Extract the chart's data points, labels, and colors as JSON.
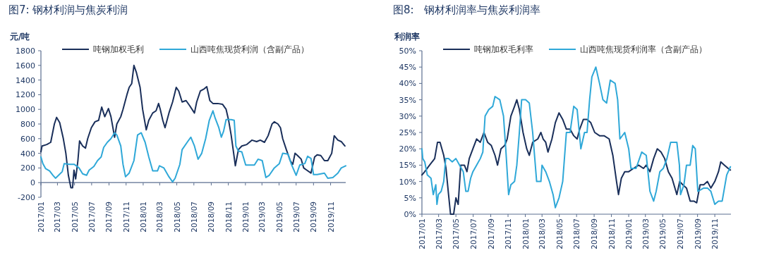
{
  "chart_data": [
    {
      "type": "line",
      "title": "图7: 钢材利润与焦炭利润",
      "ylabel": "元/吨",
      "legend": "top",
      "grid": false,
      "xlim": [
        "2017-01-01",
        "2019-12-25"
      ],
      "xticks": [
        {
          "value": "2017-01-01",
          "label": "2017/01"
        },
        {
          "value": "2017-03-01",
          "label": "2017/03"
        },
        {
          "value": "2017-05-01",
          "label": "2017/05"
        },
        {
          "value": "2017-07-01",
          "label": "2017/07"
        },
        {
          "value": "2017-09-01",
          "label": "2017/09"
        },
        {
          "value": "2017-11-01",
          "label": "2017/11"
        },
        {
          "value": "2018-01-01",
          "label": "2018/01"
        },
        {
          "value": "2018-03-01",
          "label": "2018/03"
        },
        {
          "value": "2018-05-01",
          "label": "2018/05"
        },
        {
          "value": "2018-07-01",
          "label": "2018/07"
        },
        {
          "value": "2018-09-01",
          "label": "2018/09"
        },
        {
          "value": "2018-11-01",
          "label": "2018/11"
        },
        {
          "value": "2019-01-01",
          "label": "2019/01"
        },
        {
          "value": "2019-03-01",
          "label": "2019/03"
        },
        {
          "value": "2019-05-01",
          "label": "2019/05"
        },
        {
          "value": "2019-07-01",
          "label": "2019/07"
        },
        {
          "value": "2019-09-01",
          "label": "2019/09"
        },
        {
          "value": "2019-11-01",
          "label": "2019/11"
        }
      ],
      "ylim": [
        -200,
        1800
      ],
      "yticks": [
        -200,
        0,
        200,
        400,
        600,
        800,
        1000,
        1200,
        1400,
        1600,
        1800
      ],
      "series": [
        {
          "name": "吨钢加权毛利",
          "color": "#1a2f5a",
          "x": [
            "2017-01-01",
            "2017-01-05",
            "2017-01-22",
            "2017-02-05",
            "2017-02-18",
            "2017-02-26",
            "2017-03-09",
            "2017-03-22",
            "2017-03-31",
            "2017-04-09",
            "2017-04-18",
            "2017-04-24",
            "2017-04-29",
            "2017-05-05",
            "2017-05-13",
            "2017-05-19",
            "2017-05-30",
            "2017-06-09",
            "2017-06-17",
            "2017-06-30",
            "2017-07-13",
            "2017-07-26",
            "2017-08-06",
            "2017-08-17",
            "2017-08-30",
            "2017-09-08",
            "2017-09-21",
            "2017-09-29",
            "2017-10-13",
            "2017-10-21",
            "2017-11-04",
            "2017-11-12",
            "2017-11-21",
            "2017-11-29",
            "2017-12-08",
            "2017-12-21",
            "2017-12-30",
            "2018-01-12",
            "2018-01-21",
            "2018-02-04",
            "2018-02-16",
            "2018-02-25",
            "2018-03-03",
            "2018-03-12",
            "2018-03-20",
            "2018-04-03",
            "2018-04-16",
            "2018-04-29",
            "2018-05-08",
            "2018-05-20",
            "2018-06-03",
            "2018-06-16",
            "2018-07-03",
            "2018-07-11",
            "2018-07-24",
            "2018-08-07",
            "2018-08-16",
            "2018-08-27",
            "2018-09-07",
            "2018-09-24",
            "2018-10-11",
            "2018-10-24",
            "2018-11-02",
            "2018-11-11",
            "2018-11-20",
            "2018-11-26",
            "2018-12-07",
            "2018-12-19",
            "2019-01-06",
            "2019-01-24",
            "2019-02-10",
            "2019-02-23",
            "2019-03-10",
            "2019-03-23",
            "2019-04-06",
            "2019-04-14",
            "2019-04-27",
            "2019-05-06",
            "2019-05-14",
            "2019-05-27",
            "2019-06-10",
            "2019-06-19",
            "2019-06-27",
            "2019-07-06",
            "2019-07-19",
            "2019-07-28",
            "2019-08-08",
            "2019-08-23",
            "2019-09-05",
            "2019-09-14",
            "2019-09-27",
            "2019-10-10",
            "2019-10-22",
            "2019-11-05",
            "2019-11-14",
            "2019-11-27",
            "2019-12-09",
            "2019-12-22"
          ],
          "values": [
            420,
            500,
            520,
            550,
            800,
            890,
            820,
            600,
            400,
            100,
            -70,
            -70,
            170,
            50,
            300,
            570,
            500,
            470,
            600,
            750,
            830,
            850,
            1030,
            900,
            1010,
            900,
            620,
            800,
            900,
            1000,
            1200,
            1300,
            1350,
            1600,
            1500,
            1300,
            1000,
            720,
            850,
            950,
            980,
            1080,
            1000,
            850,
            750,
            950,
            1100,
            1300,
            1250,
            1100,
            1120,
            1050,
            950,
            1100,
            1250,
            1280,
            1310,
            1120,
            1080,
            1080,
            1070,
            1000,
            850,
            650,
            400,
            230,
            450,
            500,
            520,
            580,
            560,
            580,
            550,
            640,
            800,
            830,
            800,
            750,
            600,
            450,
            300,
            250,
            400,
            370,
            320,
            200,
            170,
            130,
            350,
            380,
            370,
            300,
            300,
            400,
            640,
            580,
            560,
            500
          ]
        },
        {
          "name": "山西吨焦现货利润（含副产品）",
          "color": "#2fa8d8",
          "x": [
            "2017-01-01",
            "2017-01-08",
            "2017-01-18",
            "2017-02-01",
            "2017-02-13",
            "2017-02-22",
            "2017-03-05",
            "2017-03-18",
            "2017-03-25",
            "2017-04-13",
            "2017-04-30",
            "2017-05-17",
            "2017-05-30",
            "2017-06-13",
            "2017-06-22",
            "2017-07-09",
            "2017-07-22",
            "2017-08-04",
            "2017-08-13",
            "2017-08-26",
            "2017-09-08",
            "2017-09-21",
            "2017-09-29",
            "2017-10-13",
            "2017-10-21",
            "2017-10-30",
            "2017-11-12",
            "2017-11-29",
            "2017-12-12",
            "2017-12-25",
            "2018-01-08",
            "2018-01-21",
            "2018-02-04",
            "2018-02-21",
            "2018-02-28",
            "2018-03-16",
            "2018-04-03",
            "2018-04-16",
            "2018-04-25",
            "2018-05-12",
            "2018-05-20",
            "2018-06-07",
            "2018-06-20",
            "2018-07-03",
            "2018-07-16",
            "2018-07-29",
            "2018-08-12",
            "2018-08-25",
            "2018-09-07",
            "2018-09-15",
            "2018-09-28",
            "2018-10-07",
            "2018-10-15",
            "2018-10-24",
            "2018-11-11",
            "2018-11-22",
            "2018-11-28",
            "2018-12-07",
            "2018-12-19",
            "2019-01-02",
            "2019-02-02",
            "2019-02-15",
            "2019-03-02",
            "2019-03-15",
            "2019-03-27",
            "2019-04-14",
            "2019-05-02",
            "2019-05-14",
            "2019-06-02",
            "2019-06-14",
            "2019-07-01",
            "2019-07-14",
            "2019-08-01",
            "2019-08-11",
            "2019-08-23",
            "2019-09-01",
            "2019-09-14",
            "2019-10-10",
            "2019-10-22",
            "2019-11-09",
            "2019-11-27",
            "2019-12-09",
            "2019-12-25"
          ],
          "values": [
            350,
            260,
            190,
            160,
            100,
            60,
            100,
            150,
            260,
            250,
            250,
            200,
            120,
            100,
            170,
            220,
            300,
            350,
            480,
            550,
            600,
            680,
            650,
            500,
            250,
            80,
            130,
            300,
            650,
            680,
            550,
            350,
            160,
            160,
            230,
            200,
            80,
            10,
            60,
            250,
            450,
            550,
            620,
            500,
            320,
            400,
            600,
            850,
            980,
            880,
            750,
            620,
            700,
            860,
            860,
            850,
            500,
            430,
            420,
            240,
            240,
            320,
            300,
            70,
            100,
            200,
            260,
            400,
            390,
            250,
            100,
            240,
            260,
            360,
            330,
            110,
            110,
            130,
            60,
            70,
            130,
            200,
            230
          ]
        }
      ]
    },
    {
      "type": "line",
      "title": "图8:   钢材利润率与焦炭利润率",
      "ylabel": "利润率",
      "legend": "top",
      "grid": false,
      "xlim": [
        "2017-01-01",
        "2019-12-28"
      ],
      "xticks": [
        {
          "value": "2017-01-01",
          "label": "2017/01"
        },
        {
          "value": "2017-03-01",
          "label": "2017/03"
        },
        {
          "value": "2017-05-01",
          "label": "2017/05"
        },
        {
          "value": "2017-07-01",
          "label": "2017/07"
        },
        {
          "value": "2017-09-01",
          "label": "2017/09"
        },
        {
          "value": "2017-11-01",
          "label": "2017/11"
        },
        {
          "value": "2018-01-01",
          "label": "2018/01"
        },
        {
          "value": "2018-03-01",
          "label": "2018/03"
        },
        {
          "value": "2018-05-01",
          "label": "2018/05"
        },
        {
          "value": "2018-07-01",
          "label": "2018/07"
        },
        {
          "value": "2018-09-01",
          "label": "2018/09"
        },
        {
          "value": "2018-11-01",
          "label": "2018/11"
        },
        {
          "value": "2019-01-01",
          "label": "2019/01"
        },
        {
          "value": "2019-03-01",
          "label": "2019/03"
        },
        {
          "value": "2019-05-01",
          "label": "2019/05"
        },
        {
          "value": "2019-07-01",
          "label": "2019/07"
        },
        {
          "value": "2019-09-01",
          "label": "2019/09"
        },
        {
          "value": "2019-11-01",
          "label": "2019/11"
        }
      ],
      "ylim": [
        0,
        50
      ],
      "yticks": [
        {
          "value": 0,
          "label": "0%"
        },
        {
          "value": 5,
          "label": "5%"
        },
        {
          "value": 10,
          "label": "10%"
        },
        {
          "value": 15,
          "label": "15%"
        },
        {
          "value": 20,
          "label": "20%"
        },
        {
          "value": 25,
          "label": "25%"
        },
        {
          "value": 30,
          "label": "30%"
        },
        {
          "value": 35,
          "label": "35%"
        },
        {
          "value": 40,
          "label": "40%"
        },
        {
          "value": 45,
          "label": "45%"
        },
        {
          "value": 50,
          "label": "50%"
        }
      ],
      "series": [
        {
          "name": "吨钢加权毛利率",
          "color": "#1a2f5a",
          "x": [
            "2017-01-01",
            "2017-01-11",
            "2017-01-28",
            "2017-02-15",
            "2017-02-25",
            "2017-03-06",
            "2017-03-19",
            "2017-03-27",
            "2017-04-05",
            "2017-04-12",
            "2017-04-23",
            "2017-05-01",
            "2017-05-09",
            "2017-05-18",
            "2017-05-31",
            "2017-06-09",
            "2017-06-17",
            "2017-06-30",
            "2017-07-13",
            "2017-07-26",
            "2017-08-08",
            "2017-08-21",
            "2017-09-03",
            "2017-09-16",
            "2017-09-25",
            "2017-10-07",
            "2017-10-20",
            "2017-10-29",
            "2017-11-11",
            "2017-11-24",
            "2017-12-02",
            "2017-12-11",
            "2017-12-24",
            "2018-01-06",
            "2018-01-15",
            "2018-01-27",
            "2018-02-14",
            "2018-02-25",
            "2018-03-05",
            "2018-03-14",
            "2018-03-22",
            "2018-04-05",
            "2018-04-17",
            "2018-04-30",
            "2018-05-13",
            "2018-05-26",
            "2018-06-08",
            "2018-06-21",
            "2018-07-03",
            "2018-07-12",
            "2018-07-25",
            "2018-08-07",
            "2018-08-20",
            "2018-09-03",
            "2018-09-20",
            "2018-10-06",
            "2018-10-24",
            "2018-11-06",
            "2018-11-19",
            "2018-11-26",
            "2018-12-06",
            "2018-12-18",
            "2019-01-01",
            "2019-01-18",
            "2019-02-05",
            "2019-02-22",
            "2019-03-04",
            "2019-03-17",
            "2019-03-30",
            "2019-04-12",
            "2019-04-25",
            "2019-05-08",
            "2019-05-21",
            "2019-06-03",
            "2019-06-20",
            "2019-06-30",
            "2019-07-11",
            "2019-07-24",
            "2019-08-06",
            "2019-08-19",
            "2019-08-29",
            "2019-09-10",
            "2019-09-23",
            "2019-10-06",
            "2019-10-18",
            "2019-11-01",
            "2019-11-14",
            "2019-11-22",
            "2019-12-05",
            "2019-12-18",
            "2019-12-26"
          ],
          "values": [
            12,
            13,
            15,
            17,
            22,
            22,
            18,
            14,
            6,
            0,
            0,
            5,
            3,
            15,
            15,
            13,
            17,
            20,
            23,
            22,
            25,
            22,
            21,
            18,
            15,
            20,
            21,
            23,
            30,
            33,
            35,
            32,
            25,
            20,
            18,
            22,
            23,
            25,
            23,
            22,
            19,
            23,
            28,
            31,
            29,
            26,
            26,
            24,
            23,
            26,
            29,
            29,
            28,
            25,
            24,
            24,
            23,
            18,
            10,
            6,
            11,
            13,
            13,
            14,
            15,
            14,
            15,
            13,
            17,
            20,
            19,
            17,
            13,
            11,
            6,
            10,
            9,
            8,
            4,
            4,
            3.5,
            9,
            9,
            10,
            8,
            10,
            13,
            16,
            15,
            14,
            13.5
          ]
        },
        {
          "name": "山西吨焦现货利润率（含副产品）",
          "color": "#2fa8d8",
          "x": [
            "2017-01-01",
            "2017-01-04",
            "2017-01-11",
            "2017-01-20",
            "2017-02-02",
            "2017-02-10",
            "2017-02-19",
            "2017-02-23",
            "2017-02-28",
            "2017-03-10",
            "2017-03-19",
            "2017-03-26",
            "2017-04-05",
            "2017-04-18",
            "2017-05-01",
            "2017-05-14",
            "2017-05-27",
            "2017-06-05",
            "2017-06-13",
            "2017-06-22",
            "2017-06-30",
            "2017-07-13",
            "2017-07-26",
            "2017-08-04",
            "2017-08-12",
            "2017-08-25",
            "2017-09-08",
            "2017-09-16",
            "2017-10-03",
            "2017-10-16",
            "2017-10-24",
            "2017-11-03",
            "2017-11-11",
            "2017-11-24",
            "2017-12-02",
            "2017-12-11",
            "2017-12-19",
            "2018-01-02",
            "2018-01-15",
            "2018-01-27",
            "2018-02-10",
            "2018-02-25",
            "2018-03-01",
            "2018-03-14",
            "2018-03-27",
            "2018-04-09",
            "2018-04-17",
            "2018-04-30",
            "2018-05-13",
            "2018-05-26",
            "2018-06-08",
            "2018-06-21",
            "2018-07-03",
            "2018-07-16",
            "2018-07-29",
            "2018-08-07",
            "2018-08-16",
            "2018-08-24",
            "2018-09-07",
            "2018-09-20",
            "2018-10-02",
            "2018-10-15",
            "2018-10-28",
            "2018-11-14",
            "2018-11-23",
            "2018-12-01",
            "2018-12-18",
            "2019-01-01",
            "2019-01-09",
            "2019-01-27",
            "2019-02-16",
            "2019-03-04",
            "2019-03-17",
            "2019-03-30",
            "2019-04-08",
            "2019-04-21",
            "2019-05-03",
            "2019-05-16",
            "2019-05-29",
            "2019-06-20",
            "2019-06-29",
            "2019-07-03",
            "2019-07-15",
            "2019-07-24",
            "2019-08-06",
            "2019-08-15",
            "2019-08-24",
            "2019-09-02",
            "2019-09-23",
            "2019-10-06",
            "2019-10-18",
            "2019-11-01",
            "2019-11-14",
            "2019-11-27",
            "2019-12-05",
            "2019-12-13",
            "2019-12-26"
          ],
          "values": [
            20,
            17,
            16,
            12,
            11,
            6,
            9,
            3,
            6,
            7,
            10,
            17,
            17,
            16,
            17,
            15,
            13,
            7,
            7,
            11,
            13,
            15,
            17,
            19,
            30,
            32,
            33,
            36,
            35,
            30,
            20,
            6,
            9,
            10,
            15,
            25,
            35,
            35,
            34,
            25,
            10,
            10,
            15,
            13,
            10,
            6,
            2,
            5,
            10,
            25,
            25,
            33,
            32,
            20,
            25,
            25,
            35,
            42,
            45,
            40,
            35,
            34,
            41,
            40,
            35,
            23,
            25,
            20,
            14,
            14,
            19,
            18,
            7,
            4,
            7,
            13,
            14,
            17,
            22,
            22,
            15,
            6,
            9,
            15,
            15,
            21,
            20,
            7,
            8,
            8,
            7,
            3,
            4,
            4,
            8,
            12,
            14.5
          ]
        }
      ]
    }
  ]
}
